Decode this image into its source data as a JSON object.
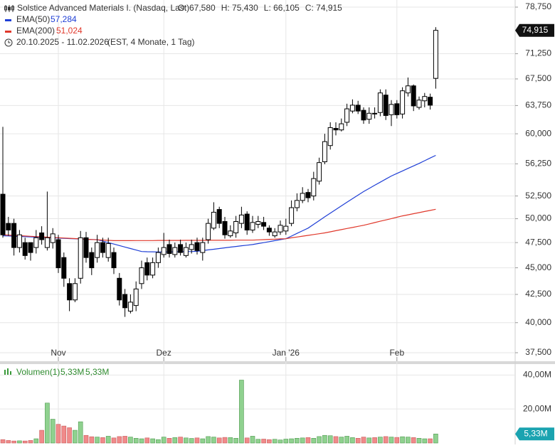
{
  "chart_data": {
    "type": "candlestick",
    "title": "Solstice Advanced Materials I. (Nasdaq, Last)",
    "header_items": [
      "O: 67,580",
      "H: 75,430",
      "L: 66,105",
      "C: 74,915"
    ],
    "date_range": "20.10.2025 - 11.02.2026",
    "range_note": "(EST, 4 Monate, 1 Tag)",
    "last_label": "74,915",
    "log_scale": true,
    "grid": true,
    "up_color": "#ffffff",
    "down_color": "#000000",
    "ylim": [
      36820,
      79960
    ],
    "yticks": [
      {
        "value": 37500,
        "label": "37,500"
      },
      {
        "value": 40000,
        "label": "40,000"
      },
      {
        "value": 42500,
        "label": "42,500"
      },
      {
        "value": 45000,
        "label": "45,000"
      },
      {
        "value": 47500,
        "label": "47,500"
      },
      {
        "value": 50000,
        "label": "50,000"
      },
      {
        "value": 52500,
        "label": "52,500"
      },
      {
        "value": 56250,
        "label": "56,250"
      },
      {
        "value": 60000,
        "label": "60,000"
      },
      {
        "value": 63750,
        "label": "63,750"
      },
      {
        "value": 67500,
        "label": "67,500"
      },
      {
        "value": 71250,
        "label": "71,250"
      },
      {
        "value": 78750,
        "label": "78,750"
      }
    ],
    "categories": [
      null,
      null,
      null,
      null,
      null,
      null,
      null,
      null,
      null,
      null,
      "Nov",
      null,
      null,
      null,
      null,
      null,
      null,
      null,
      null,
      null,
      null,
      null,
      null,
      null,
      null,
      null,
      null,
      null,
      null,
      "Dez",
      null,
      null,
      null,
      null,
      null,
      null,
      null,
      null,
      null,
      null,
      null,
      null,
      null,
      null,
      null,
      null,
      null,
      null,
      null,
      null,
      null,
      "Jan '26",
      null,
      null,
      null,
      null,
      null,
      null,
      null,
      null,
      null,
      null,
      null,
      null,
      null,
      null,
      null,
      null,
      null,
      null,
      null,
      "Feb",
      null,
      null,
      null,
      null,
      null,
      null,
      null
    ],
    "open": [
      52700,
      49500,
      49500,
      47000,
      47500,
      47500,
      47000,
      48500,
      47000,
      47500,
      47800,
      46000,
      43500,
      42000,
      44000,
      48000,
      46500,
      46000,
      47500,
      46000,
      46500,
      44000,
      42500,
      41000,
      41500,
      43500,
      45500,
      44300,
      45500,
      46300,
      47300,
      46300,
      47300,
      46200,
      46800,
      47500,
      46500,
      47800,
      49000,
      51000,
      49700,
      48200,
      48500,
      49500,
      50500,
      48800,
      49400,
      49600,
      49000,
      48200,
      48600,
      48700,
      49500,
      51200,
      52000,
      52900,
      52500,
      54200,
      56500,
      58500,
      60700,
      60500,
      61500,
      63000,
      63800,
      63100,
      61900,
      62700,
      62800,
      65200,
      62500,
      64000,
      62600,
      65500,
      66500,
      63500,
      64400,
      64900,
      67580
    ],
    "high": [
      60900,
      50200,
      50000,
      48800,
      48000,
      47200,
      48800,
      49200,
      53000,
      49000,
      48300,
      46500,
      44000,
      44000,
      48700,
      48600,
      47000,
      48300,
      48000,
      48000,
      47000,
      44500,
      43000,
      42500,
      43700,
      45700,
      46000,
      46000,
      47000,
      48500,
      47800,
      47500,
      47800,
      47500,
      47800,
      48000,
      48000,
      50000,
      51800,
      51300,
      50200,
      49300,
      50300,
      51300,
      50800,
      50300,
      50300,
      50200,
      49300,
      49000,
      49800,
      50000,
      52000,
      52800,
      53500,
      53300,
      55300,
      57000,
      60000,
      61500,
      61500,
      62000,
      64000,
      64600,
      64400,
      63500,
      63500,
      63500,
      66000,
      66000,
      64500,
      64500,
      66300,
      67700,
      66700,
      65000,
      65500,
      65400,
      75430
    ],
    "low": [
      48000,
      48200,
      46200,
      46500,
      45800,
      45700,
      46400,
      47300,
      46700,
      46900,
      44500,
      43200,
      41000,
      41800,
      43500,
      45500,
      44300,
      45500,
      46000,
      45600,
      44400,
      41500,
      40500,
      40800,
      41000,
      43000,
      43800,
      44000,
      45000,
      46000,
      46000,
      46000,
      46200,
      46000,
      46400,
      46300,
      45700,
      47400,
      48800,
      49000,
      47900,
      48000,
      48000,
      49000,
      48300,
      48500,
      49000,
      48800,
      48200,
      48000,
      48300,
      48300,
      49200,
      50800,
      51700,
      51800,
      52000,
      53800,
      56200,
      58000,
      59800,
      60300,
      61000,
      62700,
      62600,
      61300,
      61300,
      62000,
      62300,
      61800,
      61000,
      62000,
      62000,
      65000,
      63000,
      63200,
      63500,
      63200,
      66105
    ],
    "close": [
      48300,
      48800,
      47000,
      48300,
      46200,
      46500,
      48000,
      47800,
      48000,
      48400,
      45000,
      44000,
      42000,
      43500,
      48000,
      46000,
      45000,
      47500,
      46500,
      47400,
      45000,
      42000,
      41300,
      41800,
      43000,
      45000,
      44300,
      45500,
      46500,
      47000,
      46400,
      47000,
      46500,
      47000,
      47300,
      46700,
      47500,
      49500,
      50700,
      49500,
      48300,
      48700,
      49700,
      50400,
      48800,
      49600,
      49700,
      49200,
      48600,
      48600,
      49300,
      49200,
      51200,
      52000,
      52800,
      52300,
      54500,
      56400,
      59000,
      60800,
      60500,
      61300,
      63300,
      63800,
      63000,
      61800,
      62700,
      62600,
      65500,
      62400,
      63900,
      62500,
      65800,
      66500,
      63700,
      64500,
      65000,
      63800,
      74915
    ],
    "series": [
      {
        "name": "EMA(50)",
        "value_label": "57,284",
        "color": "#1f3fd6",
        "values": [
          48200,
          48180,
          48150,
          48130,
          48110,
          48080,
          48060,
          48040,
          48010,
          47990,
          47960,
          47940,
          47910,
          47890,
          47870,
          47840,
          47820,
          47800,
          47650,
          47500,
          47350,
          47200,
          47050,
          46900,
          46750,
          46600,
          46580,
          46570,
          46560,
          46560,
          46560,
          46570,
          46580,
          46590,
          46600,
          46620,
          46690,
          46760,
          46830,
          46900,
          46970,
          47040,
          47110,
          47180,
          47240,
          47300,
          47400,
          47500,
          47600,
          47700,
          47800,
          47900,
          48170,
          48450,
          48720,
          49000,
          49400,
          49800,
          50200,
          50600,
          51000,
          51400,
          51800,
          52200,
          52600,
          53000,
          53360,
          53720,
          54080,
          54440,
          54800,
          55100,
          55400,
          55700,
          56000,
          56300,
          56630,
          56960,
          57284
        ]
      },
      {
        "name": "EMA(200)",
        "value_label": "51,024",
        "color": "#e0382b",
        "values": [
          48300,
          48270,
          48240,
          48210,
          48180,
          48150,
          48120,
          48090,
          48060,
          48030,
          48000,
          47970,
          47940,
          47910,
          47880,
          47850,
          47820,
          47790,
          47760,
          47730,
          47700,
          47700,
          47700,
          47700,
          47710,
          47710,
          47710,
          47710,
          47720,
          47720,
          47720,
          47720,
          47720,
          47730,
          47730,
          47730,
          47730,
          47740,
          47740,
          47740,
          47740,
          47740,
          47750,
          47750,
          47750,
          47750,
          47780,
          47800,
          47830,
          47850,
          47880,
          47900,
          47990,
          48070,
          48160,
          48240,
          48330,
          48410,
          48500,
          48610,
          48730,
          48840,
          48960,
          49070,
          49190,
          49300,
          49440,
          49590,
          49730,
          49870,
          50010,
          50160,
          50300,
          50420,
          50540,
          50660,
          50780,
          50900,
          51024
        ]
      }
    ],
    "volume": {
      "type": "bar",
      "name": "Volumen(1)",
      "legend_labels": [
        "5,33M",
        "5,33M"
      ],
      "last_label": "5,33M",
      "up_color": "#8fd18f",
      "down_color": "#f08a8a",
      "ylim": [
        0,
        46
      ],
      "yticks": [
        {
          "value": 20,
          "label": "20,00M"
        },
        {
          "value": 40,
          "label": "40,00M"
        }
      ],
      "values": [
        2,
        1.5,
        1.2,
        1.3,
        1.2,
        1.5,
        2.5,
        7.5,
        23.5,
        14,
        11,
        10,
        9,
        7.5,
        12.5,
        4.5,
        3.7,
        3.5,
        3.2,
        4,
        3,
        3.8,
        4,
        3.5,
        2.8,
        2.5,
        3,
        2.5,
        2,
        3.5,
        2.8,
        3.2,
        3.5,
        3,
        2.7,
        3,
        2.5,
        3.8,
        3.5,
        3,
        3.3,
        3.2,
        2.8,
        37,
        3,
        4,
        2.2,
        2.3,
        2,
        2.2,
        1.8,
        2.3,
        2.5,
        2.8,
        3,
        3.2,
        2.8,
        3.8,
        4.5,
        4.3,
        3.8,
        3.5,
        4,
        3.2,
        2.8,
        3.5,
        3,
        3.2,
        3.5,
        3.8,
        3.5,
        3.3,
        3.7,
        3.5,
        3.2,
        2.8,
        2.5,
        2.5,
        5.33
      ]
    }
  }
}
